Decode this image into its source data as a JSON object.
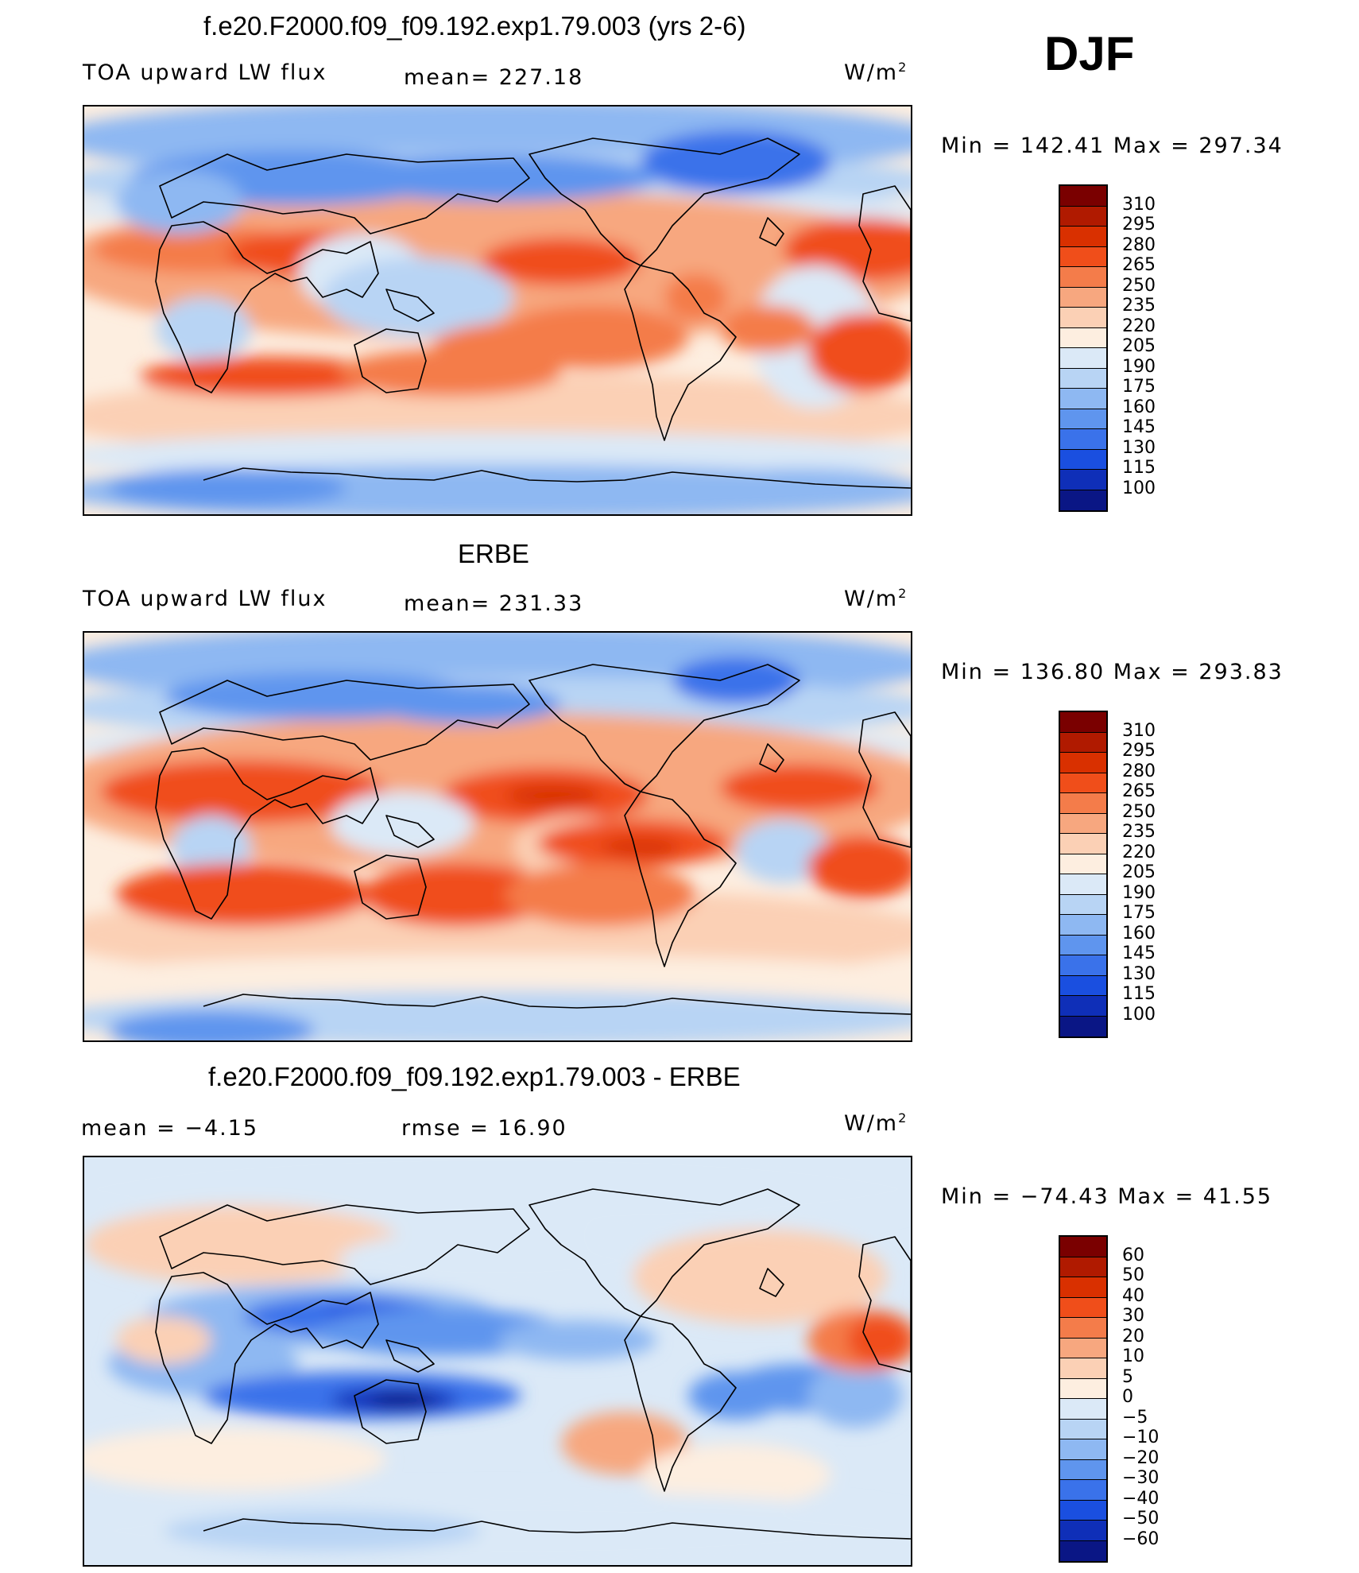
{
  "season": "DJF",
  "panels": [
    {
      "title": "f.e20.F2000.f09_f09.192.exp1.79.003 (yrs 2-6)",
      "left_label": "TOA upward LW flux",
      "center_label": "mean= 227.18",
      "units": "W/m",
      "units_exp": "2",
      "minmax": "Min = 142.41 Max = 297.34",
      "field": "model"
    },
    {
      "title": "ERBE",
      "left_label": "TOA upward LW flux",
      "center_label": "mean= 231.33",
      "units": "W/m",
      "units_exp": "2",
      "minmax": "Min = 136.80 Max = 293.83",
      "field": "obs"
    },
    {
      "title": "f.e20.F2000.f09_f09.192.exp1.79.003 - ERBE",
      "left_label": "mean =   −4.15",
      "center_label": "rmse =   16.90",
      "units": "W/m",
      "units_exp": "2",
      "minmax": "Min = −74.43 Max =   41.55",
      "field": "diff"
    }
  ],
  "colorbars": [
    {
      "labels": [
        "310",
        "295",
        "280",
        "265",
        "250",
        "235",
        "220",
        "205",
        "190",
        "175",
        "160",
        "145",
        "130",
        "115",
        "100"
      ],
      "colors": [
        "#7a0000",
        "#b01a00",
        "#d93000",
        "#f04e1a",
        "#f47c4a",
        "#f7a77f",
        "#fbd0b5",
        "#fdeee0",
        "#dbe9f7",
        "#b8d4f4",
        "#8eb8f2",
        "#5f95ee",
        "#3a72ea",
        "#1a4fe0",
        "#0f2fb8",
        "#0a1685"
      ]
    },
    {
      "labels": [
        "310",
        "295",
        "280",
        "265",
        "250",
        "235",
        "220",
        "205",
        "190",
        "175",
        "160",
        "145",
        "130",
        "115",
        "100"
      ],
      "colors": [
        "#7a0000",
        "#b01a00",
        "#d93000",
        "#f04e1a",
        "#f47c4a",
        "#f7a77f",
        "#fbd0b5",
        "#fdeee0",
        "#dbe9f7",
        "#b8d4f4",
        "#8eb8f2",
        "#5f95ee",
        "#3a72ea",
        "#1a4fe0",
        "#0f2fb8",
        "#0a1685"
      ]
    },
    {
      "labels": [
        "60",
        "50",
        "40",
        "30",
        "20",
        "10",
        "5",
        "0",
        "−5",
        "−10",
        "−20",
        "−30",
        "−40",
        "−50",
        "−60"
      ],
      "colors": [
        "#7a0000",
        "#b01a00",
        "#d93000",
        "#f04e1a",
        "#f47c4a",
        "#f7a77f",
        "#fbd0b5",
        "#fdeee0",
        "#dbe9f7",
        "#b8d4f4",
        "#8eb8f2",
        "#5f95ee",
        "#3a72ea",
        "#1a4fe0",
        "#0f2fb8",
        "#0a1685"
      ]
    }
  ]
}
